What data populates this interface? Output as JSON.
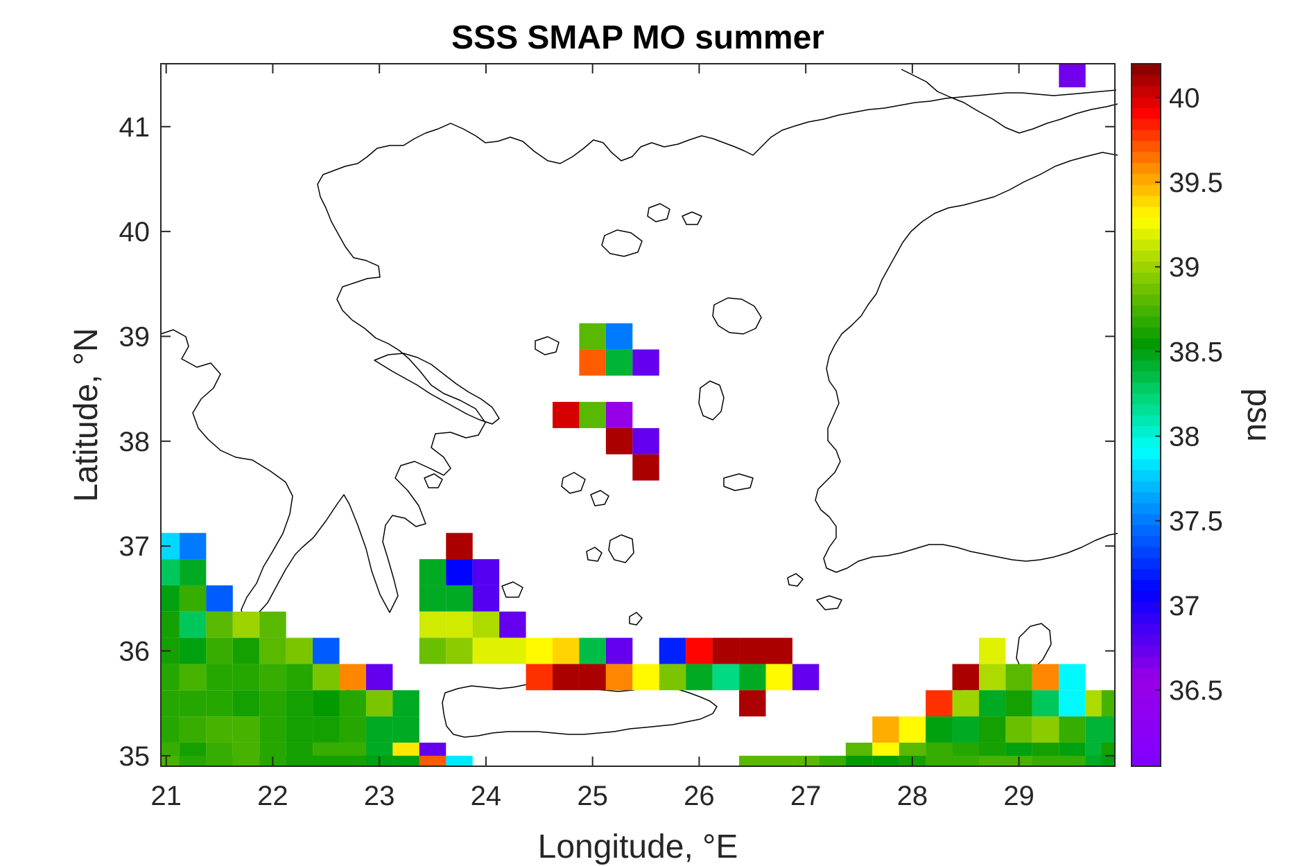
{
  "chart_data": {
    "type": "heatmap",
    "title": "SSS SMAP MO summer",
    "xlabel": "Longitude, °E",
    "ylabel": "Latitude, °N",
    "colorbar_label": "psu",
    "xlim": [
      20.95,
      29.9
    ],
    "ylim": [
      34.9,
      41.6
    ],
    "xticks": [
      21,
      22,
      23,
      24,
      25,
      26,
      27,
      28,
      29
    ],
    "yticks": [
      35,
      36,
      37,
      38,
      39,
      40,
      41
    ],
    "clim": [
      36.05,
      40.2
    ],
    "cbar_ticks": [
      36.5,
      37,
      37.5,
      38,
      38.5,
      39,
      39.5,
      40
    ],
    "colormap": "jet-like, 64 levels",
    "grid_step_deg": 0.25,
    "cells": [
      [
        29.5,
        41.5,
        36.7
      ],
      [
        25,
        39,
        38.8
      ],
      [
        25.25,
        39,
        37.5
      ],
      [
        25,
        38.75,
        39.7
      ],
      [
        25.25,
        38.75,
        38.4
      ],
      [
        25.5,
        38.75,
        36.75
      ],
      [
        24.75,
        38.25,
        40.0
      ],
      [
        25,
        38.25,
        38.8
      ],
      [
        25.25,
        38.25,
        36.5
      ],
      [
        25.25,
        38,
        40.1
      ],
      [
        25.5,
        38,
        36.75
      ],
      [
        25.5,
        37.75,
        40.1
      ],
      [
        21,
        37,
        37.8
      ],
      [
        21.25,
        37,
        37.5
      ],
      [
        23.75,
        37,
        40.1
      ],
      [
        21,
        36.75,
        38.3
      ],
      [
        21.25,
        36.75,
        38.45
      ],
      [
        23.5,
        36.75,
        38.45
      ],
      [
        23.75,
        36.75,
        37.1
      ],
      [
        24,
        36.75,
        36.8
      ],
      [
        21,
        36.5,
        38.5
      ],
      [
        21.25,
        36.5,
        38.7
      ],
      [
        21.5,
        36.5,
        37.4
      ],
      [
        23.5,
        36.5,
        38.45
      ],
      [
        23.75,
        36.5,
        38.45
      ],
      [
        24,
        36.5,
        36.8
      ],
      [
        21,
        36.25,
        38.6
      ],
      [
        21.25,
        36.25,
        38.3
      ],
      [
        21.5,
        36.25,
        38.8
      ],
      [
        21.75,
        36.25,
        39.0
      ],
      [
        22,
        36.25,
        38.8
      ],
      [
        23.5,
        36.25,
        39.15
      ],
      [
        23.75,
        36.25,
        39.15
      ],
      [
        24,
        36.25,
        39.05
      ],
      [
        24.25,
        36.25,
        36.75
      ],
      [
        21,
        36,
        38.6
      ],
      [
        21.25,
        36,
        38.5
      ],
      [
        21.5,
        36,
        38.7
      ],
      [
        21.75,
        36,
        38.6
      ],
      [
        22,
        36,
        38.8
      ],
      [
        22.25,
        36,
        38.9
      ],
      [
        22.5,
        36,
        37.4
      ],
      [
        23.5,
        36,
        38.85
      ],
      [
        23.75,
        36,
        38.95
      ],
      [
        24,
        36,
        39.2
      ],
      [
        24.25,
        36,
        39.2
      ],
      [
        24.5,
        36,
        39.3
      ],
      [
        24.75,
        36,
        39.4
      ],
      [
        25,
        36,
        38.35
      ],
      [
        25.25,
        36,
        36.75
      ],
      [
        25.75,
        36,
        37.2
      ],
      [
        26,
        36,
        39.9
      ],
      [
        26.25,
        36,
        40.1
      ],
      [
        26.5,
        36,
        40.1
      ],
      [
        26.75,
        36,
        40.1
      ],
      [
        28.75,
        36,
        39.2
      ],
      [
        21,
        35.75,
        38.65
      ],
      [
        21.25,
        35.75,
        38.75
      ],
      [
        21.5,
        35.75,
        38.65
      ],
      [
        21.75,
        35.75,
        38.65
      ],
      [
        22,
        35.75,
        38.7
      ],
      [
        22.25,
        35.75,
        38.65
      ],
      [
        22.5,
        35.75,
        38.9
      ],
      [
        22.75,
        35.75,
        39.6
      ],
      [
        23,
        35.75,
        36.75
      ],
      [
        24.5,
        35.75,
        39.8
      ],
      [
        24.75,
        35.75,
        40.1
      ],
      [
        25,
        35.75,
        40.1
      ],
      [
        25.25,
        35.75,
        39.6
      ],
      [
        25.5,
        35.75,
        39.3
      ],
      [
        25.75,
        35.75,
        38.9
      ],
      [
        26,
        35.75,
        38.45
      ],
      [
        26.25,
        35.75,
        38.2
      ],
      [
        26.5,
        35.75,
        38.45
      ],
      [
        26.75,
        35.75,
        39.3
      ],
      [
        27,
        35.75,
        36.75
      ],
      [
        28.5,
        35.75,
        40.1
      ],
      [
        28.75,
        35.75,
        39.05
      ],
      [
        29,
        35.75,
        38.8
      ],
      [
        29.25,
        35.75,
        39.6
      ],
      [
        29.5,
        35.75,
        37.9
      ],
      [
        21,
        35.5,
        38.65
      ],
      [
        21.25,
        35.5,
        38.65
      ],
      [
        21.5,
        35.5,
        38.65
      ],
      [
        21.75,
        35.5,
        38.6
      ],
      [
        22,
        35.5,
        38.65
      ],
      [
        22.25,
        35.5,
        38.6
      ],
      [
        22.5,
        35.5,
        38.55
      ],
      [
        22.75,
        35.5,
        38.65
      ],
      [
        23,
        35.5,
        38.9
      ],
      [
        23.25,
        35.5,
        38.45
      ],
      [
        26.5,
        35.5,
        40.1
      ],
      [
        28.25,
        35.5,
        39.8
      ],
      [
        28.5,
        35.5,
        39.0
      ],
      [
        28.75,
        35.5,
        38.45
      ],
      [
        29,
        35.5,
        38.6
      ],
      [
        29.25,
        35.5,
        38.3
      ],
      [
        29.5,
        35.5,
        37.9
      ],
      [
        29.75,
        35.5,
        39.05
      ],
      [
        29.9,
        35.5,
        38.75
      ],
      [
        21,
        35.25,
        38.65
      ],
      [
        21.25,
        35.25,
        38.7
      ],
      [
        21.5,
        35.25,
        38.75
      ],
      [
        21.75,
        35.25,
        38.75
      ],
      [
        22,
        35.25,
        38.65
      ],
      [
        22.25,
        35.25,
        38.6
      ],
      [
        22.5,
        35.25,
        38.6
      ],
      [
        22.75,
        35.25,
        38.65
      ],
      [
        23,
        35.25,
        38.45
      ],
      [
        23.25,
        35.25,
        38.45
      ],
      [
        27.75,
        35.25,
        39.5
      ],
      [
        28,
        35.25,
        39.3
      ],
      [
        28.25,
        35.25,
        38.5
      ],
      [
        28.5,
        35.25,
        38.45
      ],
      [
        28.75,
        35.25,
        38.6
      ],
      [
        29,
        35.25,
        38.85
      ],
      [
        29.25,
        35.25,
        38.95
      ],
      [
        29.5,
        35.25,
        38.7
      ],
      [
        29.75,
        35.25,
        38.4
      ],
      [
        29.9,
        35.25,
        38.4
      ],
      [
        21,
        35,
        38.7
      ],
      [
        21.25,
        35,
        38.6
      ],
      [
        21.5,
        35,
        38.7
      ],
      [
        21.75,
        35,
        38.75
      ],
      [
        22,
        35,
        38.65
      ],
      [
        22.25,
        35,
        38.6
      ],
      [
        22.5,
        35,
        38.7
      ],
      [
        22.75,
        35,
        38.7
      ],
      [
        23,
        35,
        38.45
      ],
      [
        23.25,
        35,
        39.35
      ],
      [
        23.5,
        35,
        36.75
      ],
      [
        27.5,
        35,
        38.8
      ],
      [
        27.75,
        35,
        39.3
      ],
      [
        28,
        35,
        38.8
      ],
      [
        28.25,
        35,
        38.7
      ],
      [
        28.5,
        35,
        38.65
      ],
      [
        28.75,
        35,
        38.6
      ],
      [
        29,
        35,
        38.5
      ],
      [
        29.25,
        35,
        38.6
      ],
      [
        29.5,
        35,
        38.5
      ],
      [
        29.75,
        35,
        38.4
      ],
      [
        29.9,
        35,
        38.6
      ],
      [
        21,
        34.875,
        38.75
      ],
      [
        21.25,
        34.875,
        38.65
      ],
      [
        21.5,
        34.875,
        38.7
      ],
      [
        21.75,
        34.875,
        38.75
      ],
      [
        22,
        34.875,
        38.65
      ],
      [
        22.25,
        34.875,
        38.6
      ],
      [
        22.5,
        34.875,
        38.6
      ],
      [
        22.75,
        34.875,
        38.6
      ],
      [
        23,
        34.875,
        38.5
      ],
      [
        23.25,
        34.875,
        38.5
      ],
      [
        23.5,
        34.875,
        39.7
      ],
      [
        23.75,
        34.875,
        37.85
      ],
      [
        26.5,
        34.875,
        38.8
      ],
      [
        26.75,
        34.875,
        38.8
      ],
      [
        27,
        34.875,
        38.8
      ],
      [
        27.25,
        34.875,
        38.7
      ],
      [
        27.5,
        34.875,
        38.55
      ],
      [
        27.75,
        34.875,
        38.55
      ],
      [
        28,
        34.875,
        38.6
      ],
      [
        28.25,
        34.875,
        38.7
      ],
      [
        28.5,
        34.875,
        38.7
      ],
      [
        28.75,
        34.875,
        38.75
      ],
      [
        29,
        34.875,
        38.75
      ],
      [
        29.25,
        34.875,
        38.7
      ],
      [
        29.5,
        34.875,
        38.7
      ],
      [
        29.75,
        34.875,
        38.45
      ],
      [
        29.9,
        34.875,
        38.5
      ]
    ]
  }
}
